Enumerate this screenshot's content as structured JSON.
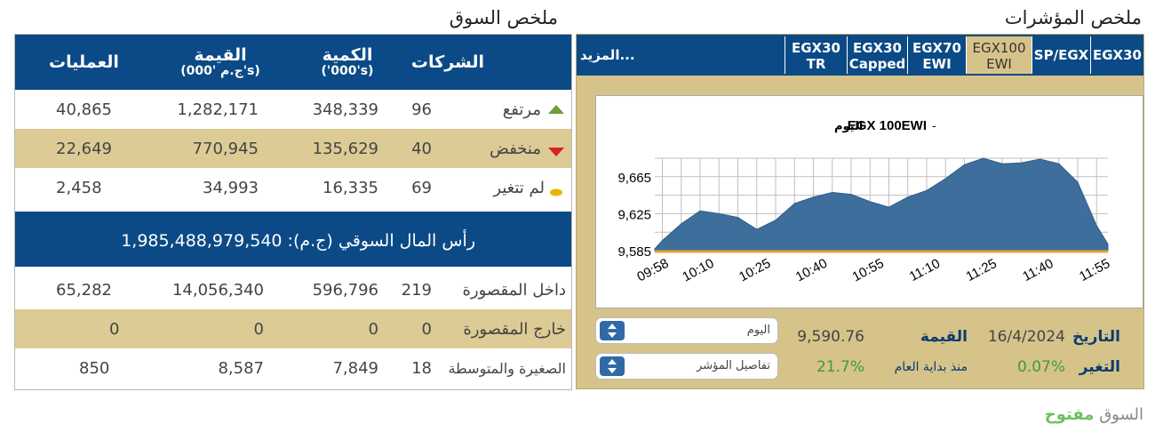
{
  "market": {
    "title": "ملخص السوق",
    "headers": {
      "companies": "الشركات",
      "volume": "الكمية",
      "volume_unit": "('000's)",
      "value": "القيمة",
      "value_unit": "(ج.م '000's)",
      "trades": "العمليات"
    },
    "rows": [
      {
        "label": "مرتفع",
        "icon": "up-triangle-icon",
        "companies": "96",
        "volume": "348,339",
        "value": "1,282,171",
        "trades": "40,865"
      },
      {
        "label": "منخفض",
        "icon": "down-triangle-icon",
        "companies": "40",
        "volume": "135,629",
        "value": "770,945",
        "trades": "22,649"
      },
      {
        "label": "لم تتغير",
        "icon": "unchanged-icon",
        "companies": "69",
        "volume": "16,335",
        "value": "34,993",
        "trades": "2,458"
      }
    ],
    "market_cap": "رأس المال السوقي (ج.م): 1,985,488,979,540",
    "rows2": [
      {
        "label": "داخل المقصورة",
        "companies": "219",
        "volume": "596,796",
        "value": "14,056,340",
        "trades": "65,282"
      },
      {
        "label": "خارج المقصورة",
        "companies": "0",
        "volume": "0",
        "value": "0",
        "trades": "0"
      },
      {
        "label": "الصغيرة والمتوسطة",
        "companies": "18",
        "volume": "7,849",
        "value": "8,587",
        "trades": "850"
      }
    ]
  },
  "indices": {
    "title": "ملخص المؤشرات",
    "tabs": [
      {
        "label": "EGX30"
      },
      {
        "label": "SP/EGX"
      },
      {
        "label": "EGX100",
        "label2": "EWI"
      },
      {
        "label": "EGX70",
        "label2": "EWI"
      },
      {
        "label": "EGX30",
        "label2": "Capped"
      },
      {
        "label": "EGX30",
        "label2": "TR"
      }
    ],
    "more": "المزيد...",
    "period_select": "اليوم",
    "details_select": "تفاصيل المؤشر",
    "date_label": "التاريخ",
    "date_value": "16/4/2024",
    "value_label": "القيمة",
    "value_value": "9,590.76",
    "change_label": "التغير",
    "change_value": "0.07%",
    "ytd_label": "منذ بداية العام",
    "ytd_value": "21.7%"
  },
  "status": {
    "label": "السوق",
    "value": "مفتوح"
  },
  "colors": {
    "navy": "#0b4a86",
    "gold": "#dccb94",
    "area": "#3d6e9c",
    "baseline": "#e3a52a",
    "green": "#3e9b3c"
  },
  "chart_data": {
    "type": "area",
    "title": "EGX 100EWI",
    "subtitle": "اليوم",
    "x": [
      "09:58",
      "10:00",
      "10:05",
      "10:10",
      "10:15",
      "10:20",
      "10:25",
      "10:30",
      "10:35",
      "10:40",
      "10:45",
      "10:50",
      "10:55",
      "11:00",
      "11:05",
      "11:10",
      "11:15",
      "11:20",
      "11:25",
      "11:30",
      "11:35",
      "11:40",
      "11:45",
      "11:50",
      "11:55",
      "11:58"
    ],
    "values": [
      9587,
      9596,
      9614,
      9628,
      9625,
      9621,
      9608,
      9618,
      9636,
      9643,
      9648,
      9646,
      9638,
      9632,
      9643,
      9650,
      9663,
      9678,
      9685,
      9679,
      9680,
      9684,
      9679,
      9659,
      9612,
      9592
    ],
    "xticks": [
      "09:58",
      "10:10",
      "10:25",
      "10:40",
      "10:55",
      "11:10",
      "11:25",
      "11:40",
      "11:55"
    ],
    "yticks": [
      "9,585",
      "9,625",
      "9,665"
    ],
    "ylim": [
      9585,
      9685
    ],
    "grid": true
  }
}
